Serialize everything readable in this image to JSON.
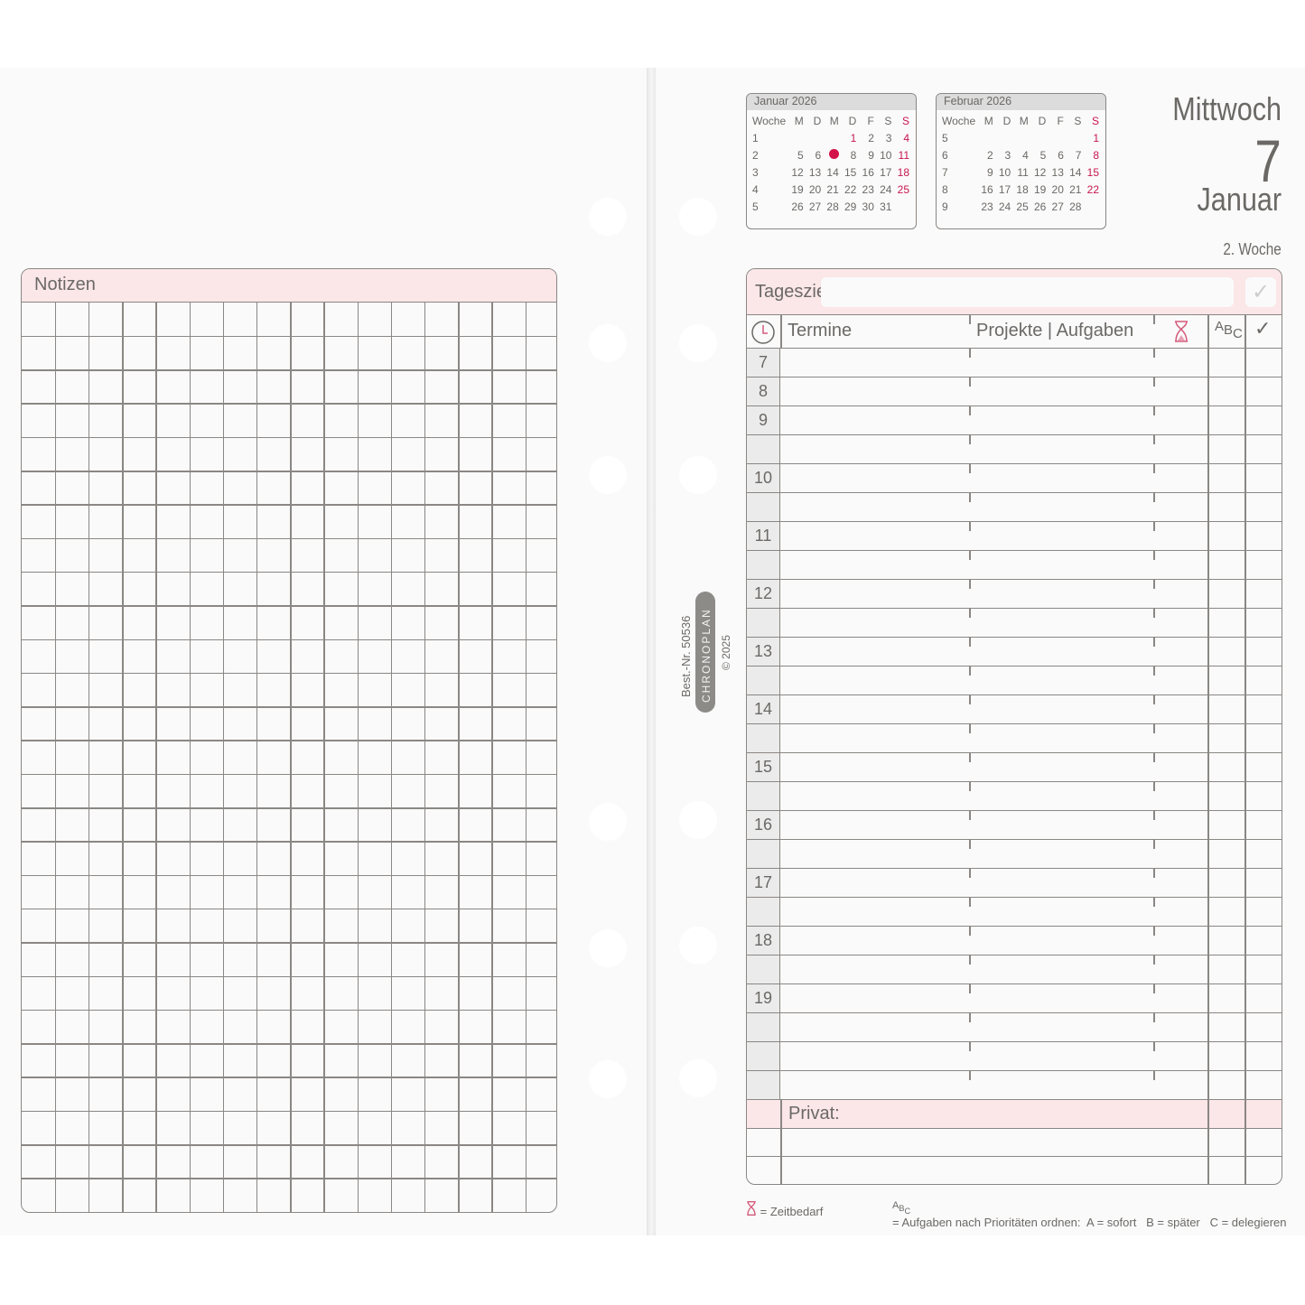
{
  "notes": {
    "title": "Notizen"
  },
  "mini_calendars": [
    {
      "title": "Januar 2026",
      "header": [
        "Woche",
        "M",
        "D",
        "M",
        "D",
        "F",
        "S",
        "S"
      ],
      "rows": [
        [
          "1",
          "",
          "",
          "",
          "1",
          "2",
          "3",
          "4"
        ],
        [
          "2",
          "5",
          "6",
          "7",
          "8",
          "9",
          "10",
          "11"
        ],
        [
          "3",
          "12",
          "13",
          "14",
          "15",
          "16",
          "17",
          "18"
        ],
        [
          "4",
          "19",
          "20",
          "21",
          "22",
          "23",
          "24",
          "25"
        ],
        [
          "5",
          "26",
          "27",
          "28",
          "29",
          "30",
          "31",
          ""
        ]
      ],
      "highlighted_day": "7"
    },
    {
      "title": "Februar 2026",
      "header": [
        "Woche",
        "M",
        "D",
        "M",
        "D",
        "F",
        "S",
        "S"
      ],
      "rows": [
        [
          "5",
          "",
          "",
          "",
          "",
          "",
          "",
          "1"
        ],
        [
          "6",
          "2",
          "3",
          "4",
          "5",
          "6",
          "7",
          "8"
        ],
        [
          "7",
          "9",
          "10",
          "11",
          "12",
          "13",
          "14",
          "15"
        ],
        [
          "8",
          "16",
          "17",
          "18",
          "19",
          "20",
          "21",
          "22"
        ],
        [
          "9",
          "23",
          "24",
          "25",
          "26",
          "27",
          "28",
          ""
        ]
      ]
    }
  ],
  "date": {
    "weekday": "Mittwoch",
    "day": "7",
    "month": "Januar",
    "week": "2. Woche"
  },
  "schedule": {
    "goal_label": "Tagesziel",
    "goal_value": "",
    "goal_check": "✓",
    "headers": {
      "termine": "Termine",
      "projekte": "Projekte | Aufgaben",
      "abc": "ABC",
      "check": "✓"
    },
    "hours": [
      "7",
      "8",
      "9",
      "",
      "10",
      "",
      "11",
      "",
      "12",
      "",
      "13",
      "",
      "14",
      "",
      "15",
      "",
      "16",
      "",
      "17",
      "",
      "18",
      "",
      "19",
      "",
      "",
      ""
    ],
    "privat_label": "Privat:"
  },
  "footer": {
    "zeitbedarf": "= Zeitbedarf",
    "abc_legend": "= Aufgaben nach Prioritäten ordnen:  A = sofort   B = später   C = delegieren"
  },
  "imprint": {
    "order_no": "Best.-Nr. 50536",
    "brand": "CHRONOPLAN",
    "copyright": "© 2025"
  },
  "colors": {
    "accent_pink": "#fbe6e8",
    "sunday_red": "#c8164e",
    "line": "#8a8784"
  }
}
